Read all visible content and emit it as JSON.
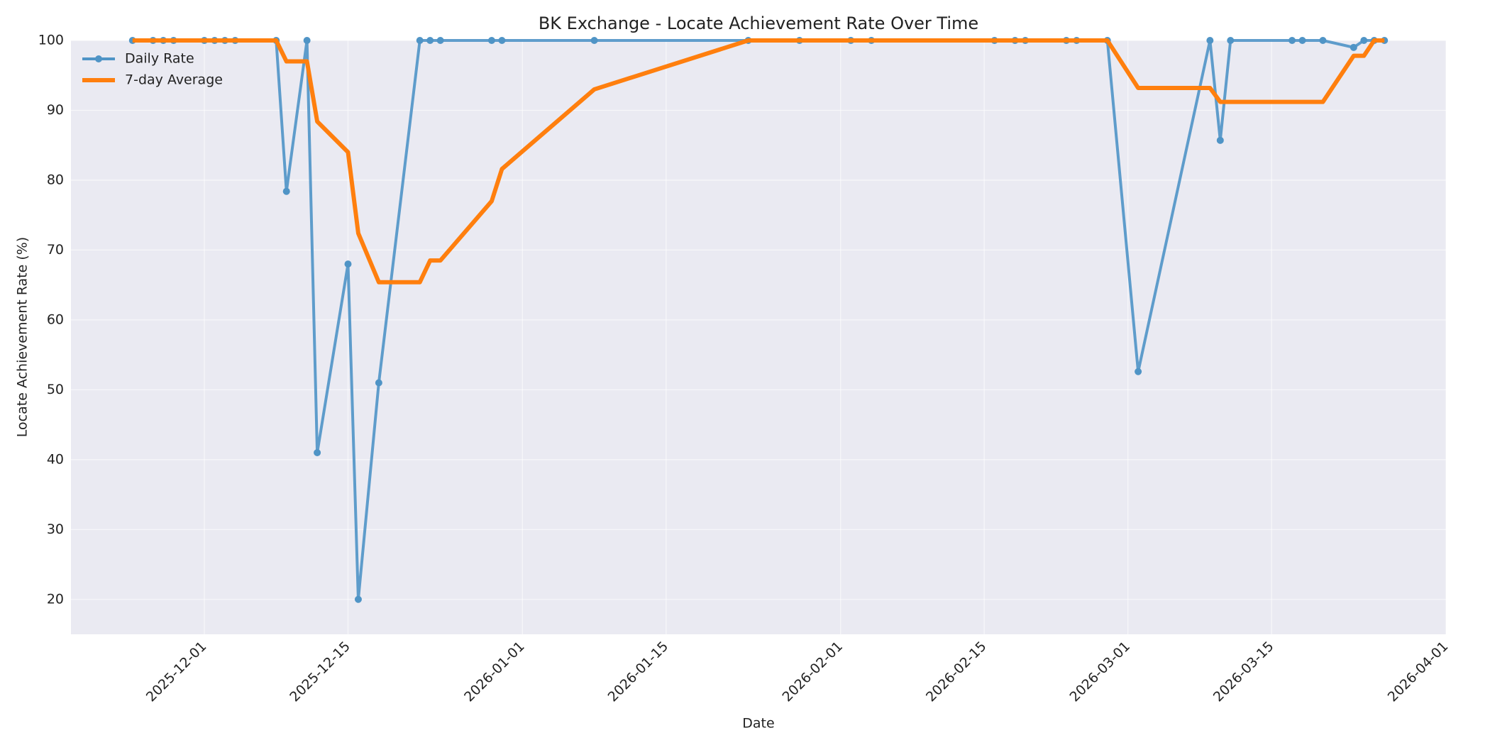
{
  "chart_data": {
    "type": "line",
    "title": "BK Exchange - Locate Achievement Rate Over Time",
    "xlabel": "Date",
    "ylabel": "Locate Achievement Rate (%)",
    "x": [
      "2025-11-24",
      "2025-11-26",
      "2025-11-27",
      "2025-11-28",
      "2025-12-01",
      "2025-12-02",
      "2025-12-03",
      "2025-12-04",
      "2025-12-08",
      "2025-12-09",
      "2025-12-11",
      "2025-12-12",
      "2025-12-15",
      "2025-12-16",
      "2025-12-18",
      "2025-12-22",
      "2025-12-23",
      "2025-12-24",
      "2025-12-29",
      "2025-12-30",
      "2026-01-08",
      "2026-01-23",
      "2026-01-28",
      "2026-02-02",
      "2026-02-04",
      "2026-02-16",
      "2026-02-18",
      "2026-02-19",
      "2026-02-23",
      "2026-02-24",
      "2026-02-27",
      "2026-03-02",
      "2026-03-09",
      "2026-03-10",
      "2026-03-11",
      "2026-03-17",
      "2026-03-18",
      "2026-03-20",
      "2026-03-23",
      "2026-03-24",
      "2026-03-25",
      "2026-03-26"
    ],
    "series": [
      {
        "name": "Daily Rate",
        "color": "#4f94c6",
        "marker": true,
        "values": [
          100,
          100,
          100,
          100,
          100,
          100,
          100,
          100,
          100,
          78.4,
          100,
          41,
          68,
          20,
          51,
          100,
          100,
          100,
          100,
          100,
          100,
          100,
          100,
          100,
          100,
          100,
          100,
          100,
          100,
          100,
          100,
          52.6,
          100,
          85.7,
          100,
          100,
          100,
          100,
          99,
          100,
          100,
          100
        ]
      },
      {
        "name": "7-day Average",
        "color": "#ff7f0e",
        "marker": false,
        "values": [
          100,
          100,
          100,
          100,
          100,
          100,
          100,
          100,
          100,
          97,
          97,
          88.4,
          84,
          72.4,
          65.4,
          65.4,
          68.5,
          68.5,
          77,
          81.6,
          93,
          100,
          100,
          100,
          100,
          100,
          100,
          100,
          100,
          100,
          100,
          93.2,
          93.2,
          91.2,
          91.2,
          91.2,
          91.2,
          91.2,
          97.8,
          97.8,
          100,
          100
        ]
      }
    ],
    "xlim": [
      "2025-11-18",
      "2026-04-01"
    ],
    "xticks": [
      "2025-12-01",
      "2025-12-15",
      "2026-01-01",
      "2026-01-15",
      "2026-02-01",
      "2026-02-15",
      "2026-03-01",
      "2026-03-15",
      "2026-04-01"
    ],
    "ylim": [
      15,
      100
    ],
    "yticks": [
      20,
      30,
      40,
      50,
      60,
      70,
      80,
      90,
      100
    ],
    "grid": true,
    "legend": "upper-left"
  }
}
